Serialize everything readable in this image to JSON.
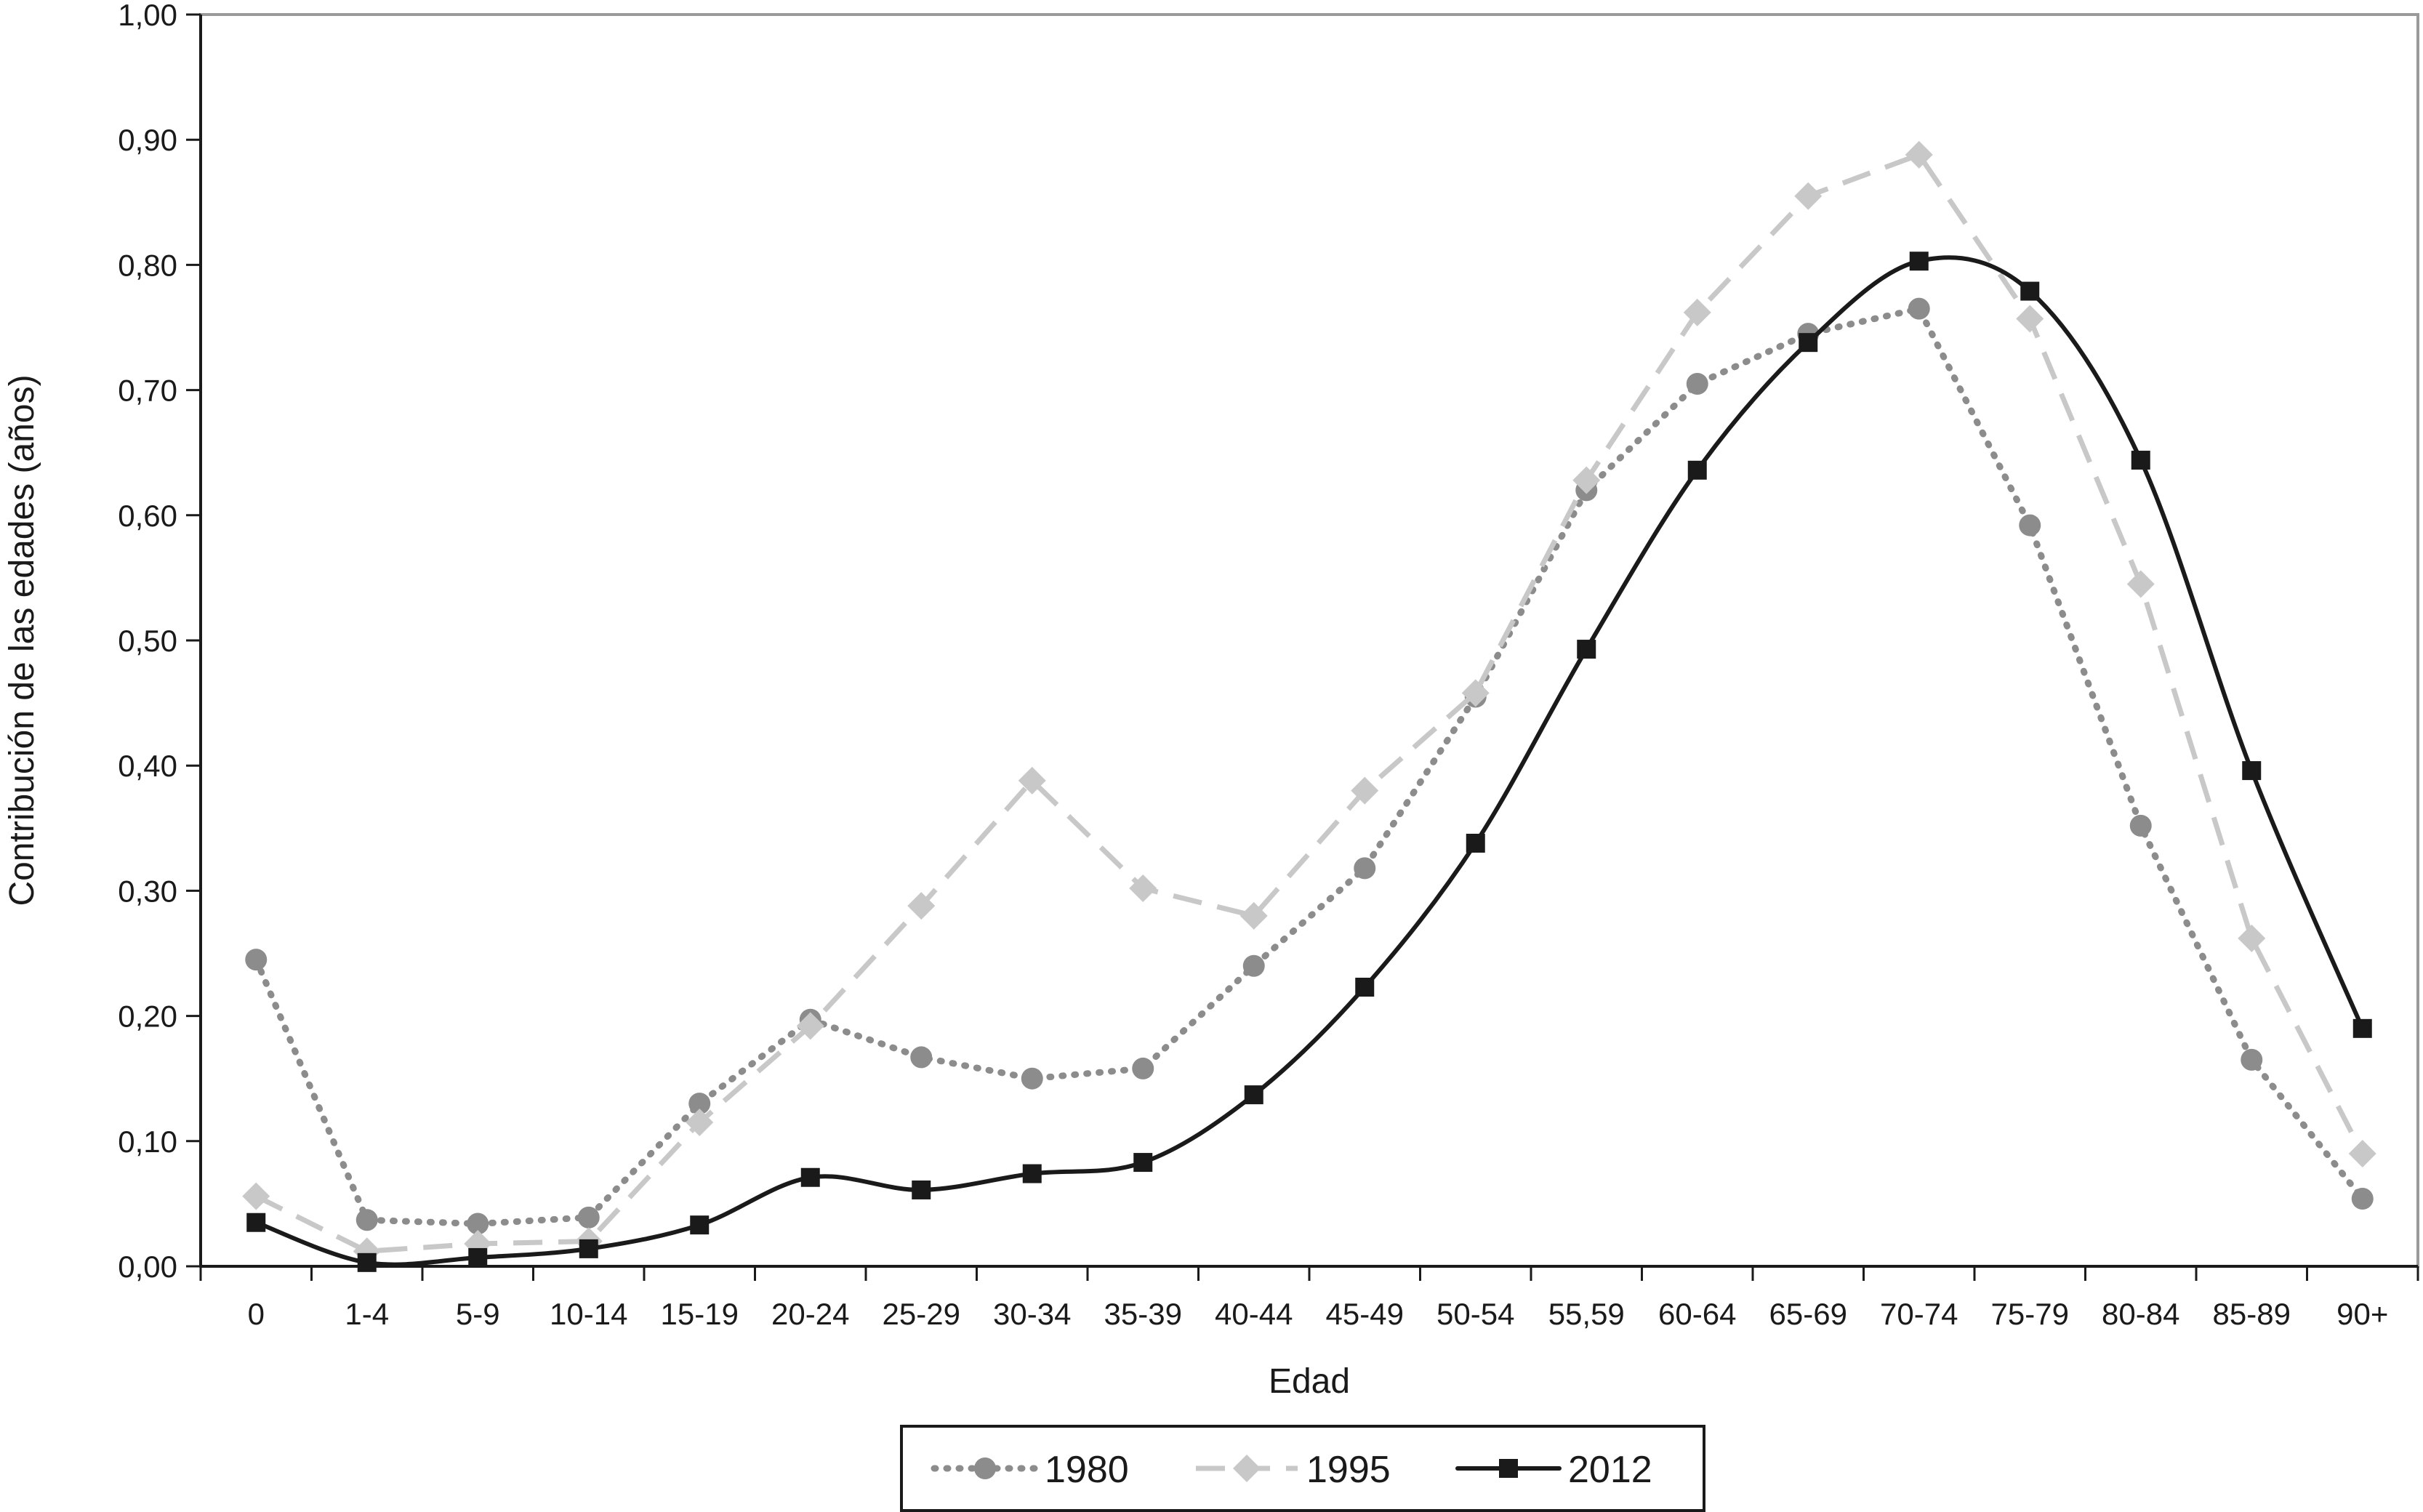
{
  "chart_data": {
    "type": "line",
    "title": "",
    "xlabel": "Edad",
    "ylabel": "Contribución de las edades (años)",
    "categories": [
      "0",
      "1-4",
      "5-9",
      "10-14",
      "15-19",
      "20-24",
      "25-29",
      "30-34",
      "35-39",
      "40-44",
      "45-49",
      "50-54",
      "55,59",
      "60-64",
      "65-69",
      "70-74",
      "75-79",
      "80-84",
      "85-89",
      "90+"
    ],
    "ylim": [
      0,
      1.0
    ],
    "yticks": [
      "0,00",
      "0,10",
      "0,20",
      "0,30",
      "0,40",
      "0,50",
      "0,60",
      "0,70",
      "0,80",
      "0,90",
      "1,00"
    ],
    "grid": false,
    "legend_position": "bottom-center",
    "series": [
      {
        "name": "1980",
        "style": "dotted",
        "marker": "circle",
        "color": "#8c8c8c",
        "values": [
          0.245,
          0.037,
          0.034,
          0.039,
          0.13,
          0.197,
          0.167,
          0.15,
          0.158,
          0.24,
          0.318,
          0.455,
          0.62,
          0.705,
          0.745,
          0.765,
          0.592,
          0.352,
          0.165,
          0.054
        ]
      },
      {
        "name": "1995",
        "style": "dashed",
        "marker": "diamond",
        "color": "#c8c8c8",
        "values": [
          0.056,
          0.012,
          0.018,
          0.02,
          0.115,
          0.192,
          0.288,
          0.388,
          0.302,
          0.28,
          0.38,
          0.458,
          0.628,
          0.762,
          0.855,
          0.888,
          0.757,
          0.545,
          0.262,
          0.09
        ]
      },
      {
        "name": "2012",
        "style": "solid",
        "marker": "square",
        "color": "#1a1a1a",
        "values": [
          0.035,
          0.003,
          0.007,
          0.014,
          0.033,
          0.071,
          0.061,
          0.074,
          0.083,
          0.137,
          0.223,
          0.338,
          0.493,
          0.636,
          0.738,
          0.803,
          0.779,
          0.644,
          0.396,
          0.19
        ]
      }
    ]
  }
}
